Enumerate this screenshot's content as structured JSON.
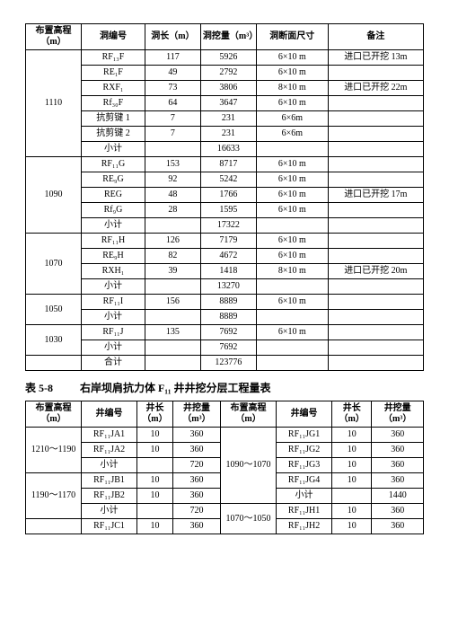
{
  "t1": {
    "headers": [
      "布置高程（m）",
      "洞编号",
      "洞长（m）",
      "洞挖量（m³）",
      "洞断面尺寸",
      "备注"
    ],
    "groups": [
      {
        "gc": "1110",
        "rows": [
          {
            "c": [
              "RF₁₃F",
              "117",
              "5926",
              "6×10 m",
              "进口已开挖 13m"
            ]
          },
          {
            "c": [
              "RE₁F",
              "49",
              "2792",
              "6×10 m",
              ""
            ]
          },
          {
            "c": [
              "RXF₁",
              "73",
              "3806",
              "8×10 m",
              "进口已开挖 22m"
            ]
          },
          {
            "c": [
              "Rf₃₀F",
              "64",
              "3647",
              "6×10 m",
              ""
            ]
          },
          {
            "c": [
              "抗剪键 1",
              "7",
              "231",
              "6×6m",
              ""
            ]
          },
          {
            "c": [
              "抗剪键 2",
              "7",
              "231",
              "6×6m",
              ""
            ]
          },
          {
            "c": [
              "小计",
              "",
              "16633",
              "",
              ""
            ]
          }
        ]
      },
      {
        "gc": "1090",
        "rows": [
          {
            "c": [
              "RF₁₁G",
              "153",
              "8717",
              "6×10 m",
              ""
            ]
          },
          {
            "c": [
              "RE₉G",
              "92",
              "5242",
              "6×10 m",
              ""
            ]
          },
          {
            "c": [
              "REG",
              "48",
              "1766",
              "6×10 m",
              "进口已开挖 17m"
            ]
          },
          {
            "c": [
              "Rf₉G",
              "28",
              "1595",
              "6×10 m",
              ""
            ]
          },
          {
            "c": [
              "小计",
              "",
              "17322",
              "",
              ""
            ]
          }
        ]
      },
      {
        "gc": "1070",
        "rows": [
          {
            "c": [
              "RF₁₁H",
              "126",
              "7179",
              "6×10 m",
              ""
            ]
          },
          {
            "c": [
              "RE₉H",
              "82",
              "4672",
              "6×10 m",
              ""
            ]
          },
          {
            "c": [
              "RXH₁",
              "39",
              "1418",
              "8×10 m",
              "进口已开挖 20m"
            ]
          },
          {
            "c": [
              "小计",
              "",
              "13270",
              "",
              ""
            ]
          }
        ]
      },
      {
        "gc": "1050",
        "rows": [
          {
            "c": [
              "RF₁₁I",
              "156",
              "8889",
              "6×10 m",
              ""
            ]
          },
          {
            "c": [
              "小计",
              "",
              "8889",
              "",
              ""
            ]
          }
        ]
      },
      {
        "gc": "1030",
        "rows": [
          {
            "c": [
              "RF₁₁J",
              "135",
              "7692",
              "6×10 m",
              ""
            ]
          },
          {
            "c": [
              "小计",
              "",
              "7692",
              "",
              ""
            ]
          }
        ]
      }
    ],
    "total": [
      "合计",
      "",
      "123776",
      "",
      ""
    ]
  },
  "caption": {
    "no": "表 5-8",
    "title": "右岸坝肩抗力体 F₁₁ 井井挖分层工程量表"
  },
  "t2": {
    "headers": [
      "布置高程（m）",
      "井编号",
      "井长（m）",
      "井挖量（m³）",
      "布置高程（m）",
      "井编号",
      "井长（m）",
      "井挖量（m³）"
    ],
    "rows": [
      {
        "l_gc": "1210～1190",
        "l_span": 3,
        "l": [
          "RF₁₁JA1",
          "10",
          "360"
        ],
        "r_gc": "1090～1070",
        "r_span": 5,
        "r": [
          "RF₁₁JG1",
          "10",
          "360"
        ]
      },
      {
        "l": [
          "RF₁₁JA2",
          "10",
          "360"
        ],
        "r": [
          "RF₁₁JG2",
          "10",
          "360"
        ]
      },
      {
        "l": [
          "小计",
          "",
          "720"
        ],
        "r": [
          "RF₁₁JG3",
          "10",
          "360"
        ]
      },
      {
        "l_gc": "1190～1170",
        "l_span": 3,
        "l": [
          "RF₁₁JB1",
          "10",
          "360"
        ],
        "r": [
          "RF₁₁JG4",
          "10",
          "360"
        ]
      },
      {
        "l": [
          "RF₁₁JB2",
          "10",
          "360"
        ],
        "r": [
          "小计",
          "",
          "1440"
        ]
      },
      {
        "l": [
          "小计",
          "",
          "720"
        ],
        "r_gc": "1070～1050",
        "r_span": 2,
        "r": [
          "RF₁₁JH1",
          "10",
          "360"
        ]
      },
      {
        "l_gc": "",
        "l_span": 1,
        "l": [
          "RF₁₁JC1",
          "10",
          "360"
        ],
        "r": [
          "RF₁₁JH2",
          "10",
          "360"
        ]
      }
    ]
  }
}
